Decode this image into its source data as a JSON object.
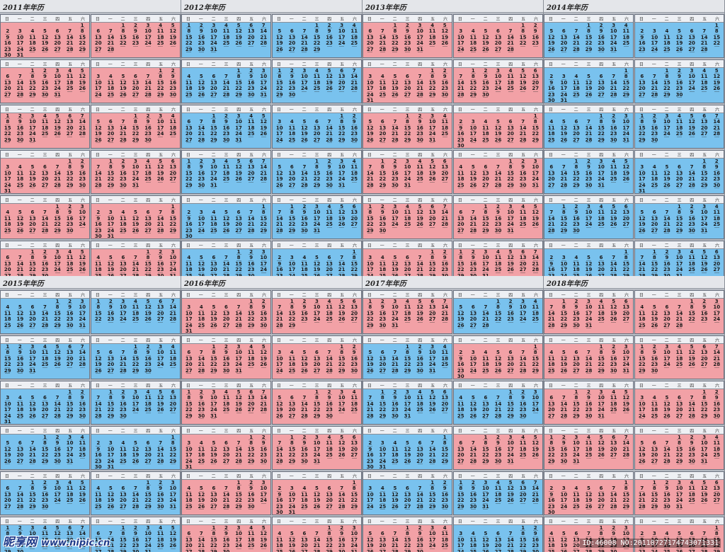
{
  "weekdays": [
    "日",
    "一",
    "二",
    "三",
    "四",
    "五",
    "六"
  ],
  "colors": {
    "pink": "#f2a1a6",
    "blue": "#79c2ee"
  },
  "years": [
    {
      "title": "2011年年历",
      "year": 2011,
      "scheme": [
        "pink",
        "pink",
        "pink",
        "pink",
        "pink",
        "pink",
        "pink",
        "pink",
        "pink",
        "pink",
        "pink",
        "pink"
      ]
    },
    {
      "title": "2012年年历",
      "year": 2012,
      "scheme": [
        "blue",
        "blue",
        "blue",
        "blue",
        "blue",
        "blue",
        "blue",
        "blue",
        "blue",
        "blue",
        "blue",
        "blue"
      ]
    },
    {
      "title": "2013年年历",
      "year": 2013,
      "scheme": [
        "pink",
        "pink",
        "pink",
        "pink",
        "pink",
        "pink",
        "pink",
        "pink",
        "pink",
        "pink",
        "pink",
        "pink"
      ]
    },
    {
      "title": "2014年年历",
      "year": 2014,
      "scheme": [
        "blue",
        "blue",
        "blue",
        "blue",
        "blue",
        "blue",
        "blue",
        "blue",
        "blue",
        "blue",
        "blue",
        "blue"
      ]
    },
    {
      "title": "2015年年历",
      "year": 2015,
      "scheme": [
        "blue",
        "blue",
        "blue",
        "blue",
        "blue",
        "blue",
        "blue",
        "blue",
        "blue",
        "blue",
        "blue",
        "blue"
      ]
    },
    {
      "title": "2016年年历",
      "year": 2016,
      "scheme": [
        "pink",
        "pink",
        "pink",
        "pink",
        "pink",
        "pink",
        "pink",
        "pink",
        "pink",
        "pink",
        "pink",
        "pink"
      ]
    },
    {
      "title": "2017年年历",
      "year": 2017,
      "scheme": [
        "pink",
        "blue",
        "blue",
        "pink",
        "blue",
        "blue",
        "blue",
        "pink",
        "blue",
        "blue",
        "pink",
        "blue"
      ]
    },
    {
      "title": "2018年年历",
      "year": 2018,
      "scheme": [
        "pink",
        "pink",
        "pink",
        "pink",
        "pink",
        "pink",
        "pink",
        "pink",
        "pink",
        "pink",
        "pink",
        "pink"
      ]
    }
  ],
  "watermark": {
    "brand": "昵享网",
    "url": "www.nipic.cn"
  },
  "image_id": "ID:46008 NO:20110727174743071331"
}
